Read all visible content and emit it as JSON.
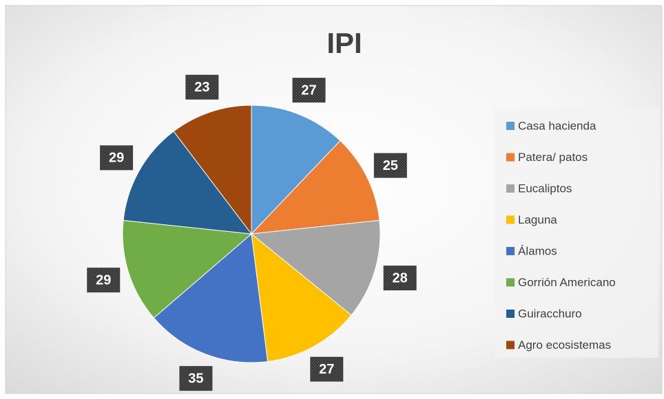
{
  "chart_data": {
    "type": "pie",
    "title": "IPI",
    "categories": [
      "Casa hacienda",
      "Patera/ patos",
      "Eucaliptos",
      "Laguna",
      "Álamos",
      "Gorrión Americano",
      "Guiracchuro",
      "Agro ecosistemas"
    ],
    "values": [
      27,
      25,
      28,
      27,
      35,
      29,
      29,
      23
    ],
    "colors": [
      "#5b9bd5",
      "#ed7d31",
      "#a5a5a5",
      "#ffc000",
      "#4472c4",
      "#70ad47",
      "#255e91",
      "#9e480e"
    ],
    "legend": "right"
  }
}
